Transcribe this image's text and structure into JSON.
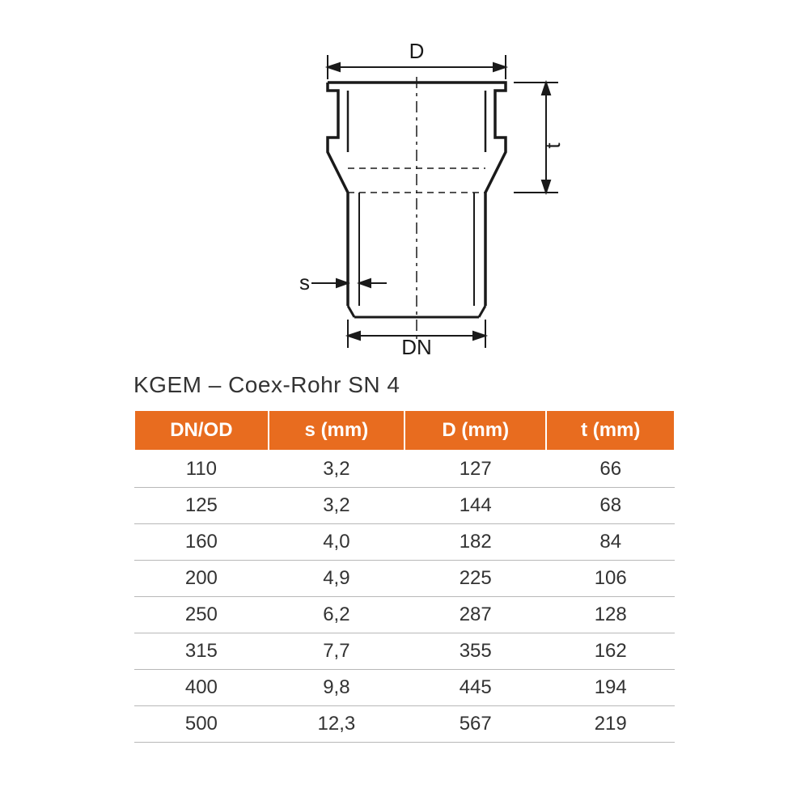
{
  "diagram": {
    "type": "technical-drawing",
    "labels": {
      "D": "D",
      "t": "t",
      "s": "s",
      "DN": "DN"
    },
    "stroke_color": "#1a1a1a",
    "stroke_width_main": 3,
    "stroke_width_thin": 1.5,
    "background_color": "#ffffff",
    "font_size_labels": 26
  },
  "title": "KGEM – Coex-Rohr SN 4",
  "table": {
    "type": "table",
    "header_bg": "#e86c1f",
    "header_fg": "#ffffff",
    "row_border": "#b8b8b8",
    "text_color": "#333333",
    "font_size": 24,
    "columns": [
      "DN/OD",
      "s (mm)",
      "D (mm)",
      "t (mm)"
    ],
    "rows": [
      [
        "110",
        "3,2",
        "127",
        "66"
      ],
      [
        "125",
        "3,2",
        "144",
        "68"
      ],
      [
        "160",
        "4,0",
        "182",
        "84"
      ],
      [
        "200",
        "4,9",
        "225",
        "106"
      ],
      [
        "250",
        "6,2",
        "287",
        "128"
      ],
      [
        "315",
        "7,7",
        "355",
        "162"
      ],
      [
        "400",
        "9,8",
        "445",
        "194"
      ],
      [
        "500",
        "12,3",
        "567",
        "219"
      ]
    ]
  }
}
